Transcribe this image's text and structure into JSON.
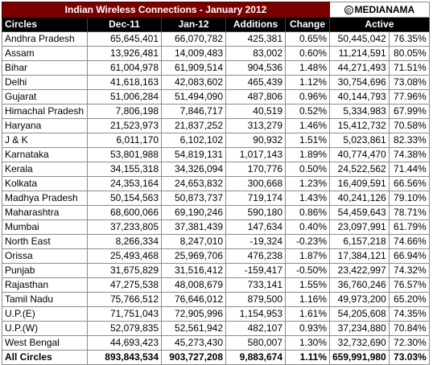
{
  "title": "Indian Wireless Connections - January 2012",
  "brand": "MEDIANAMA",
  "brand_mark": "©",
  "headers": [
    "Circles",
    "Dec-11",
    "Jan-12",
    "Additions",
    "Change",
    "Active",
    ""
  ],
  "rows": [
    [
      "Andhra Pradesh",
      "65,645,401",
      "66,070,782",
      "425,381",
      "0.65%",
      "50,445,042",
      "76.35%"
    ],
    [
      "Assam",
      "13,926,481",
      "14,009,483",
      "83,002",
      "0.60%",
      "11,214,591",
      "80.05%"
    ],
    [
      "Bihar",
      "61,004,978",
      "61,909,514",
      "904,536",
      "1.48%",
      "44,271,493",
      "71.51%"
    ],
    [
      "Delhi",
      "41,618,163",
      "42,083,602",
      "465,439",
      "1.12%",
      "30,754,696",
      "73.08%"
    ],
    [
      "Gujarat",
      "51,006,284",
      "51,494,090",
      "487,806",
      "0.96%",
      "40,144,793",
      "77.96%"
    ],
    [
      "Himachal Pradesh",
      "7,806,198",
      "7,846,717",
      "40,519",
      "0.52%",
      "5,334,983",
      "67.99%"
    ],
    [
      "Haryana",
      "21,523,973",
      "21,837,252",
      "313,279",
      "1.46%",
      "15,412,732",
      "70.58%"
    ],
    [
      "J & K",
      "6,011,170",
      "6,102,102",
      "90,932",
      "1.51%",
      "5,023,861",
      "82.33%"
    ],
    [
      "Karnataka",
      "53,801,988",
      "54,819,131",
      "1,017,143",
      "1.89%",
      "40,774,470",
      "74.38%"
    ],
    [
      "Kerala",
      "34,155,318",
      "34,326,094",
      "170,776",
      "0.50%",
      "24,522,562",
      "71.44%"
    ],
    [
      "Kolkata",
      "24,353,164",
      "24,653,832",
      "300,668",
      "1.23%",
      "16,409,591",
      "66.56%"
    ],
    [
      "Madhya Pradesh",
      "50,154,563",
      "50,873,737",
      "719,174",
      "1.43%",
      "40,241,126",
      "79.10%"
    ],
    [
      "Maharashtra",
      "68,600,066",
      "69,190,246",
      "590,180",
      "0.86%",
      "54,459,643",
      "78.71%"
    ],
    [
      "Mumbai",
      "37,233,805",
      "37,381,439",
      "147,634",
      "0.40%",
      "23,097,991",
      "61.79%"
    ],
    [
      "North East",
      "8,266,334",
      "8,247,010",
      "-19,324",
      "-0.23%",
      "6,157,218",
      "74.66%"
    ],
    [
      "Orissa",
      "25,493,468",
      "25,969,706",
      "476,238",
      "1.87%",
      "17,384,121",
      "66.94%"
    ],
    [
      "Punjab",
      "31,675,829",
      "31,516,412",
      "-159,417",
      "-0.50%",
      "23,422,997",
      "74.32%"
    ],
    [
      "Rajasthan",
      "47,275,538",
      "48,008,679",
      "733,141",
      "1.55%",
      "36,760,246",
      "76.57%"
    ],
    [
      "Tamil Nadu",
      "75,766,512",
      "76,646,012",
      "879,500",
      "1.16%",
      "49,973,200",
      "65.20%"
    ],
    [
      "U.P.(E)",
      "71,751,043",
      "72,905,996",
      "1,154,953",
      "1.61%",
      "54,205,608",
      "74.35%"
    ],
    [
      "U.P.(W)",
      "52,079,835",
      "52,561,942",
      "482,107",
      "0.93%",
      "37,234,880",
      "70.84%"
    ],
    [
      "West Bengal",
      "44,693,423",
      "45,273,430",
      "580,007",
      "1.30%",
      "32,732,690",
      "72.30%"
    ]
  ],
  "total": [
    "All Circles",
    "893,843,534",
    "903,727,208",
    "9,883,674",
    "1.11%",
    "659,991,980",
    "73.03%"
  ]
}
